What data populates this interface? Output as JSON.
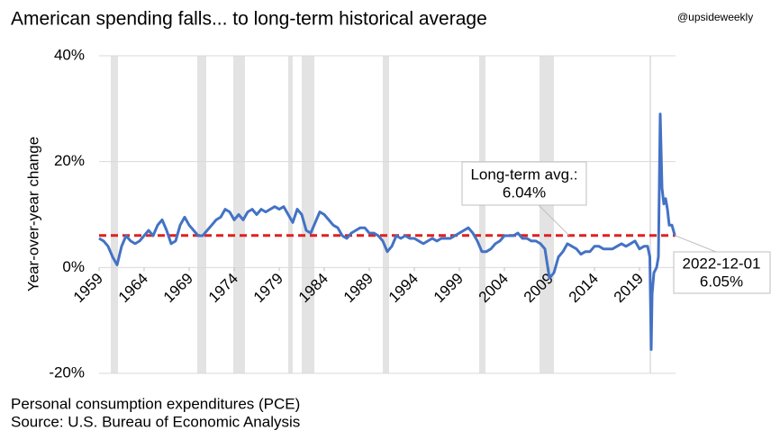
{
  "chart_data": {
    "type": "line",
    "title": "American spending falls... to long-term historical average",
    "handle": "@upsideweekly",
    "y_label": "Year-over-year change",
    "source_lines": [
      "Personal consumption expenditures (PCE)",
      "Source: U.S. Bureau of Economic Analysis"
    ],
    "color": "#4472c4",
    "average": {
      "value": 6.04,
      "label": "6.04%",
      "title": "Long-term avg.:",
      "color": "#e02020"
    },
    "end_label": {
      "date": "2022-12-01",
      "value_label": "6.05%"
    },
    "recession_color": "#e3e3e3",
    "recessions": [
      [
        1960.3,
        1961.1
      ],
      [
        1969.9,
        1970.9
      ],
      [
        1973.9,
        1975.2
      ],
      [
        1980.0,
        1980.5
      ],
      [
        1981.5,
        1982.9
      ],
      [
        1990.5,
        1991.2
      ],
      [
        2001.2,
        2001.9
      ],
      [
        2007.9,
        2009.5
      ],
      [
        2020.1,
        2020.3
      ]
    ],
    "xlim": [
      1959,
      2023
    ],
    "xticks": [
      1959,
      1964,
      1969,
      1974,
      1979,
      1984,
      1989,
      1994,
      1999,
      2004,
      2009,
      2014,
      2019
    ],
    "ylim": [
      -20,
      40
    ],
    "yticks": [
      {
        "value": -20,
        "label": "-20%"
      },
      {
        "value": 0,
        "label": "0%"
      },
      {
        "value": 20,
        "label": "20%"
      },
      {
        "value": 40,
        "label": "40%"
      }
    ],
    "grid": true,
    "x": [
      1959.0,
      1959.5,
      1960,
      1960.5,
      1961,
      1961.5,
      1962,
      1962.5,
      1963,
      1963.5,
      1964,
      1964.5,
      1965,
      1965.5,
      1966,
      1966.5,
      1967,
      1967.5,
      1968,
      1968.5,
      1969,
      1969.5,
      1970,
      1970.5,
      1971,
      1971.5,
      1972,
      1972.5,
      1973,
      1973.5,
      1974,
      1974.5,
      1975,
      1975.5,
      1976,
      1976.5,
      1977,
      1977.5,
      1978,
      1978.5,
      1979,
      1979.5,
      1980,
      1980.5,
      1981,
      1981.5,
      1982,
      1982.5,
      1983,
      1983.5,
      1984,
      1984.5,
      1985,
      1985.5,
      1986,
      1986.5,
      1987,
      1987.5,
      1988,
      1988.5,
      1989,
      1989.5,
      1990,
      1990.5,
      1991,
      1991.5,
      1992,
      1992.5,
      1993,
      1993.5,
      1994,
      1994.5,
      1995,
      1995.5,
      1996,
      1996.5,
      1997,
      1997.5,
      1998,
      1998.5,
      1999,
      1999.5,
      2000,
      2000.5,
      2001,
      2001.5,
      2002,
      2002.5,
      2003,
      2003.5,
      2004,
      2004.5,
      2005,
      2005.5,
      2006,
      2006.5,
      2007,
      2007.5,
      2008,
      2008.5,
      2009,
      2009.5,
      2010,
      2010.5,
      2011,
      2011.5,
      2012,
      2012.5,
      2013,
      2013.5,
      2014,
      2014.5,
      2015,
      2015.5,
      2016,
      2016.5,
      2017,
      2017.5,
      2018,
      2018.5,
      2019,
      2019.5,
      2019.9,
      2020.15,
      2020.3,
      2020.4,
      2020.6,
      2020.9,
      2021.1,
      2021.3,
      2021.5,
      2021.7,
      2021.9,
      2022.1,
      2022.3,
      2022.6,
      2022.92
    ],
    "values": [
      5.5,
      5,
      4,
      2,
      0.5,
      4,
      6,
      5,
      4.5,
      5,
      6,
      7,
      6,
      8,
      9,
      7,
      4.5,
      5,
      8,
      9.5,
      8,
      7,
      6,
      6,
      7,
      8,
      9,
      9.5,
      11,
      10.5,
      9,
      10,
      9,
      10.5,
      11,
      10,
      11,
      10.5,
      11,
      11.5,
      11,
      11.5,
      10,
      8.5,
      11,
      10,
      7,
      6.5,
      8.5,
      10.5,
      10,
      9,
      8,
      7.5,
      6,
      5.5,
      6.5,
      7,
      7.5,
      7.5,
      6.5,
      6.5,
      6,
      5,
      3,
      4,
      6,
      5.5,
      6,
      5.5,
      5.5,
      5,
      4.5,
      5,
      5.5,
      5,
      5.5,
      5.5,
      5.5,
      6,
      6.5,
      7,
      7.5,
      6.5,
      5,
      3,
      3,
      3.5,
      4.5,
      5,
      6,
      6,
      6,
      6.5,
      5.5,
      5.5,
      5,
      5,
      4.5,
      3.5,
      -2,
      -1,
      2,
      3,
      4.5,
      4,
      3.5,
      2.5,
      3,
      3,
      4,
      4,
      3.5,
      3.5,
      3.5,
      4,
      4.5,
      4,
      4.5,
      5,
      3.5,
      4,
      4,
      2,
      -15.5,
      -5,
      -1,
      0,
      2,
      29,
      15,
      12,
      13,
      11,
      8,
      8,
      6.05
    ]
  }
}
